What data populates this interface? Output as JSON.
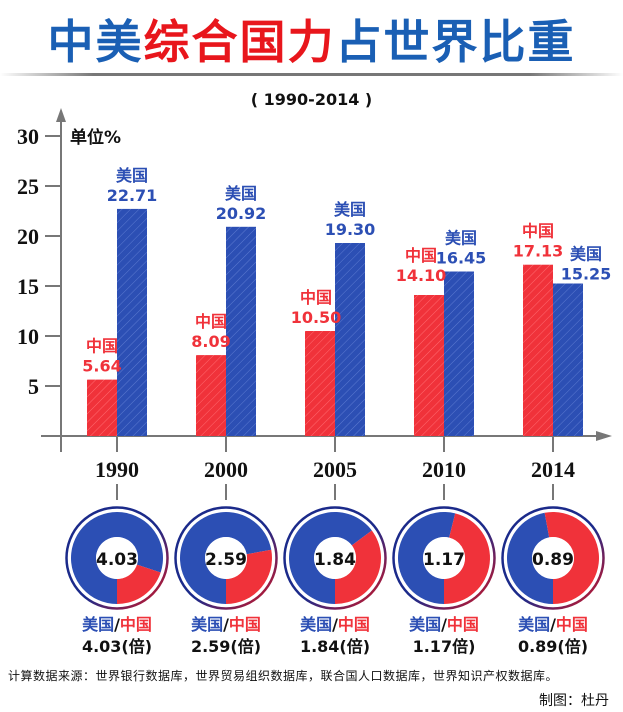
{
  "title": {
    "parts": [
      {
        "text": "中美",
        "color": "#1a5fb4"
      },
      {
        "text": "综合国力",
        "color": "#e8161c"
      },
      {
        "text": "占世界比重",
        "color": "#1a5fb4"
      }
    ]
  },
  "subtitle": "( 1990-2014 )",
  "colors": {
    "china": "#f0323a",
    "usa": "#2c4fb4",
    "axis": "#777777"
  },
  "chart_data": {
    "type": "bar",
    "title": "中美综合国力占世界比重",
    "subtitle": "( 1990-2014 )",
    "ylabel": "单位%",
    "xlabel": "",
    "ylim": [
      0,
      30
    ],
    "yticks": [
      5,
      10,
      15,
      20,
      25,
      30
    ],
    "categories": [
      "1990",
      "2000",
      "2005",
      "2010",
      "2014"
    ],
    "series": [
      {
        "name": "中国",
        "values": [
          5.64,
          8.09,
          10.5,
          14.1,
          17.13
        ],
        "labels": [
          "5.64",
          "8.09",
          "10.50",
          "14.10",
          "17.13"
        ]
      },
      {
        "name": "美国",
        "values": [
          22.71,
          20.92,
          19.3,
          16.45,
          15.25
        ],
        "labels": [
          "22.71",
          "20.92",
          "19.30",
          "16.45",
          "15.25"
        ]
      }
    ],
    "grid": false,
    "ratios": {
      "type": "pie",
      "label_us": "美国",
      "label_sep": "/",
      "label_cn": "中国",
      "values": [
        4.03,
        2.59,
        1.84,
        1.17,
        0.89
      ],
      "center_labels": [
        "4.03",
        "2.59",
        "1.84",
        "1.17",
        "0.89"
      ],
      "captions": [
        "4.03(倍)",
        "2.59(倍)",
        "1.84(倍)",
        "1.17倍)",
        "0.89(倍)"
      ]
    }
  },
  "footer": {
    "source": "计算数据来源：世界银行数据库，世界贸易组织数据库，联合国人口数据库，世界知识产权数据库。",
    "credit": "制图：杜丹"
  }
}
